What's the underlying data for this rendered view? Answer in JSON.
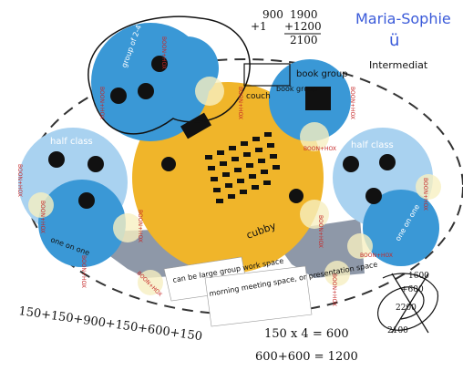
{
  "author": "Maria-Sophie",
  "smiley": "ü",
  "level": "Intermediat",
  "sum_top": {
    "a1": "900",
    "a2": "+1",
    "b1": "1900",
    "b2": "+1200",
    "b3": "2100"
  },
  "zones": {
    "left": "half class",
    "right": "half class",
    "book_group_right": "book group",
    "book_group_left": "book group",
    "top_group": "group of 2-4",
    "one_on_one_left": "one on one",
    "one_on_one_right": "one on one",
    "cubby": "cubby",
    "couch": "couch"
  },
  "notes": {
    "note1": "can be large group work space",
    "note2": "morning meeting space, or presentation space"
  },
  "equations": {
    "eq1": "150+150+900+150+600+150",
    "eq2": "150 x 4 = 600",
    "eq3": "600+600 = 1200"
  },
  "scribble_nums": [
    "1600",
    "+600",
    "2200",
    "2100"
  ],
  "brand": "BOON+HOX",
  "colors": {
    "blue": "#3a98d6",
    "light_blue": "#a9d2f0",
    "yellow": "#f0b52a",
    "grey": "#8e98a8",
    "ink": "#1a1a1a",
    "name_blue": "#3a5ad9"
  }
}
